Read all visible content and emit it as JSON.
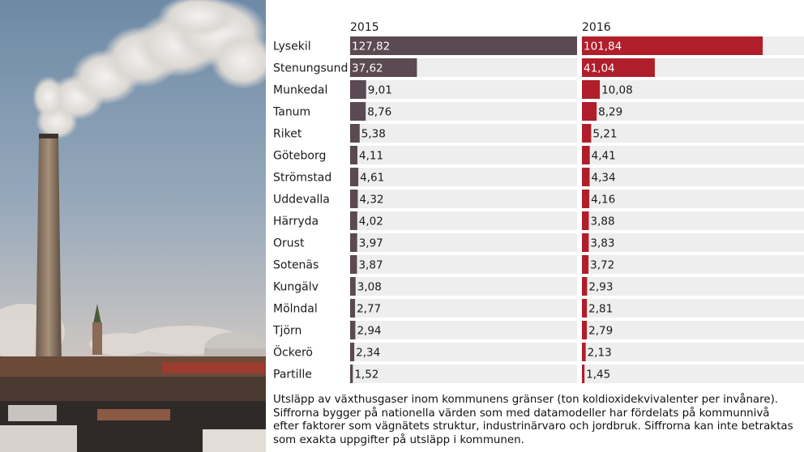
{
  "caption": "Utsläpp av växthusgaser inom kommunens gränser (ton koldioxidekvivalenter per invånare). Siffrorna bygger på nationella värden som med datamodeller har fördelats på kommunnivå efter faktorer som vägnätets struktur, industrinärvaro och jordbruk. Siffrorna kan inte betraktas som exakta uppgifter på utsläpp i kommunen.",
  "colors": {
    "series_2015": "#5b4a52",
    "series_2016": "#b01e2b",
    "row_background": "#eeeeee"
  },
  "chart_data": {
    "type": "bar",
    "orientation": "horizontal",
    "categories": [
      "Lysekil",
      "Stenungsund",
      "Munkedal",
      "Tanum",
      "Riket",
      "Göteborg",
      "Strömstad",
      "Uddevalla",
      "Härryda",
      "Orust",
      "Sotenäs",
      "Kungälv",
      "Mölndal",
      "Tjörn",
      "Öckerö",
      "Partille"
    ],
    "series": [
      {
        "name": "2015",
        "values": [
          127.82,
          37.62,
          9.01,
          8.76,
          5.38,
          4.11,
          4.61,
          4.32,
          4.02,
          3.97,
          3.87,
          3.08,
          2.77,
          2.94,
          2.34,
          1.52
        ],
        "labels": [
          "127,82",
          "37,62",
          "9,01",
          "8,76",
          "5,38",
          "4,11",
          "4,61",
          "4,32",
          "4,02",
          "3,97",
          "3,87",
          "3,08",
          "2,77",
          "2,94",
          "2,34",
          "1,52"
        ]
      },
      {
        "name": "2016",
        "values": [
          101.84,
          41.04,
          10.08,
          8.29,
          5.21,
          4.41,
          4.34,
          4.16,
          3.88,
          3.83,
          3.72,
          2.93,
          2.81,
          2.79,
          2.13,
          1.45
        ],
        "labels": [
          "101,84",
          "41,04",
          "10,08",
          "8,29",
          "5,21",
          "4,41",
          "4,34",
          "4,16",
          "3,88",
          "3,83",
          "3,72",
          "2,93",
          "2,81",
          "2,79",
          "2,13",
          "1,45"
        ]
      }
    ],
    "xlim": [
      0,
      127.82
    ],
    "grid": false,
    "legend": "none"
  }
}
